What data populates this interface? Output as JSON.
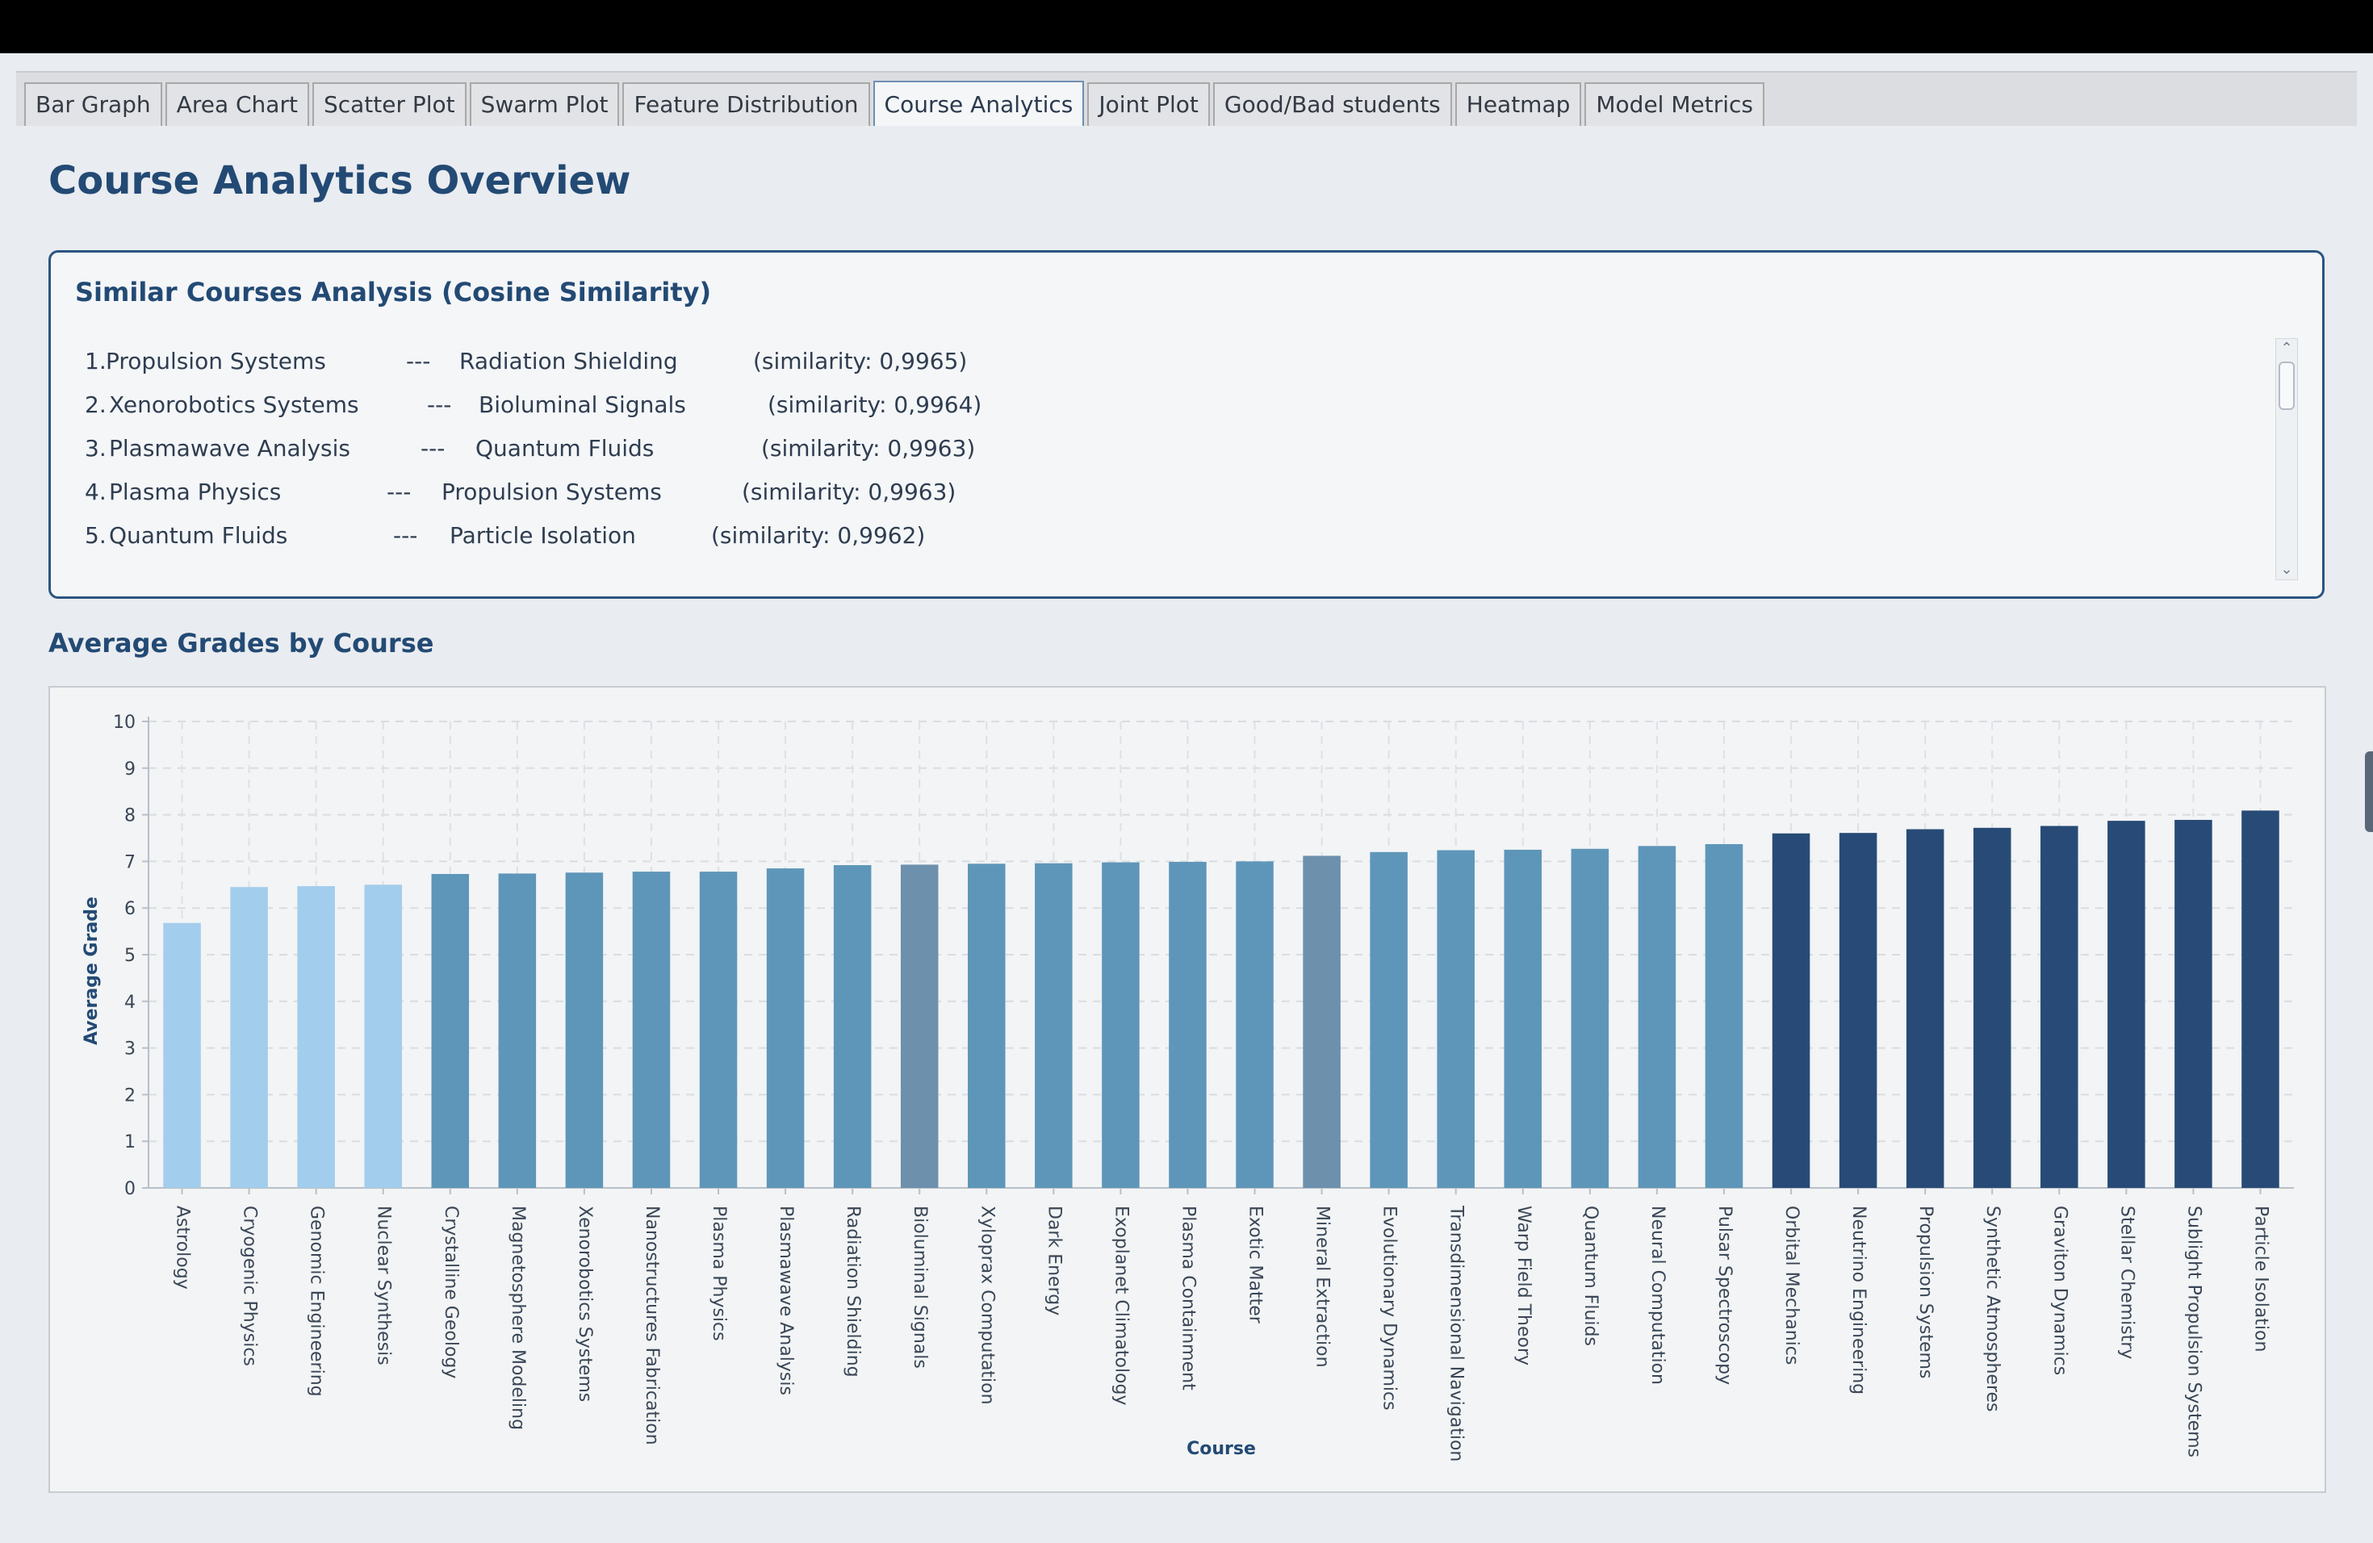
{
  "tabs": [
    {
      "label": "Bar Graph",
      "active": false
    },
    {
      "label": "Area Chart",
      "active": false
    },
    {
      "label": "Scatter Plot",
      "active": false
    },
    {
      "label": "Swarm Plot",
      "active": false
    },
    {
      "label": "Feature Distribution",
      "active": false
    },
    {
      "label": "Course Analytics",
      "active": true
    },
    {
      "label": "Joint Plot",
      "active": false
    },
    {
      "label": "Good/Bad students",
      "active": false
    },
    {
      "label": "Heatmap",
      "active": false
    },
    {
      "label": "Model Metrics",
      "active": false
    }
  ],
  "page_title": "Course Analytics Overview",
  "similar_courses": {
    "title": "Similar Courses Analysis (Cosine Similarity)",
    "separator": "---",
    "items": [
      {
        "rank": "1.",
        "course_a": "Propulsion Systems",
        "course_b": "Radiation Shielding",
        "similarity": "(similarity: 0,9965)"
      },
      {
        "rank": "2.",
        "course_a": "Xenorobotics Systems",
        "course_b": "Bioluminal Signals",
        "similarity": "(similarity: 0,9964)"
      },
      {
        "rank": "3.",
        "course_a": "Plasmawave Analysis",
        "course_b": "Quantum Fluids",
        "similarity": "(similarity: 0,9963)"
      },
      {
        "rank": "4.",
        "course_a": "Plasma Physics",
        "course_b": "Propulsion Systems",
        "similarity": "(similarity: 0,9963)"
      },
      {
        "rank": "5.",
        "course_a": "Quantum Fluids",
        "course_b": "Particle Isolation",
        "similarity": "(similarity: 0,9962)"
      }
    ]
  },
  "chart_section_title": "Average Grades by Course",
  "colors": {
    "low": "#a3cded",
    "mid": "#5e96b9",
    "mid_alt": "#6d90ad",
    "high": "#274b76",
    "accent": "#234a74"
  },
  "chart_data": {
    "type": "bar",
    "xlabel": "Course",
    "ylabel": "Average Grade",
    "ylim": [
      0,
      10
    ],
    "yticks": [
      "0",
      "1",
      "2",
      "3",
      "4",
      "5",
      "6",
      "7",
      "8",
      "9",
      "10"
    ],
    "grid": true,
    "categories": [
      "Astrology",
      "Cryogenic Physics",
      "Genomic Engineering",
      "Nuclear Synthesis",
      "Crystalline Geology",
      "Magnetosphere Modeling",
      "Xenorobotics Systems",
      "Nanostructures Fabrication",
      "Plasma Physics",
      "Plasmawave Analysis",
      "Radiation Shielding",
      "Bioluminal Signals",
      "Xyloprax Computation",
      "Dark Energy",
      "Exoplanet Climatology",
      "Plasma Containment",
      "Exotic Matter",
      "Mineral Extraction",
      "Evolutionary Dynamics",
      "Transdimensional Navigation",
      "Warp Field Theory",
      "Quantum Fluids",
      "Neural Computation",
      "Pulsar Spectroscopy",
      "Orbital Mechanics",
      "Neutrino Engineering",
      "Propulsion Systems",
      "Synthetic Atmospheres",
      "Graviton Dynamics",
      "Stellar Chemistry",
      "Sublight Propulsion Systems",
      "Particle Isolation"
    ],
    "values": [
      5.68,
      6.45,
      6.47,
      6.5,
      6.73,
      6.74,
      6.76,
      6.78,
      6.78,
      6.85,
      6.92,
      6.93,
      6.95,
      6.96,
      6.98,
      6.99,
      7.0,
      7.12,
      7.2,
      7.24,
      7.25,
      7.27,
      7.33,
      7.37,
      7.6,
      7.61,
      7.69,
      7.72,
      7.76,
      7.87,
      7.89,
      8.09
    ],
    "bar_colors": [
      "low",
      "low",
      "low",
      "low",
      "mid",
      "mid",
      "mid",
      "mid",
      "mid",
      "mid",
      "mid",
      "mid_alt",
      "mid",
      "mid",
      "mid",
      "mid",
      "mid",
      "mid_alt",
      "mid",
      "mid",
      "mid",
      "mid",
      "mid",
      "mid",
      "high",
      "high",
      "high",
      "high",
      "high",
      "high",
      "high",
      "high"
    ]
  }
}
